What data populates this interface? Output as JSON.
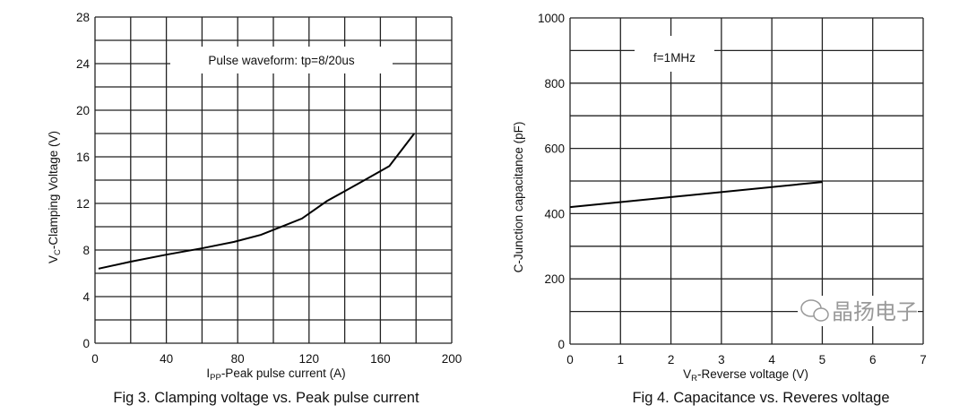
{
  "chart_data": [
    {
      "type": "line",
      "title": "Fig 3. Clamping voltage vs. Peak pulse current",
      "xlabel_main": "I",
      "xlabel_sub": "PP",
      "xlabel_rest": "-Peak pulse current (A)",
      "ylabel_main": "V",
      "ylabel_sub": "C",
      "ylabel_rest": "-Clamping Voltage (V)",
      "annotation": "Pulse waveform: tp=8/20us",
      "xlim": [
        0,
        200
      ],
      "ylim": [
        0,
        28
      ],
      "xticks": [
        0,
        40,
        80,
        120,
        160,
        200
      ],
      "yticks": [
        0,
        4,
        8,
        12,
        16,
        20,
        24,
        28
      ],
      "xgrid_step": 20,
      "ygrid_step": 2,
      "grid": true,
      "series": [
        {
          "name": "Vc",
          "x": [
            2,
            20,
            40,
            60,
            78,
            93,
            116,
            130,
            150,
            165,
            179
          ],
          "y": [
            6.4,
            7.0,
            7.6,
            8.15,
            8.7,
            9.3,
            10.7,
            12.2,
            13.9,
            15.2,
            18.0
          ]
        }
      ]
    },
    {
      "type": "line",
      "title": "Fig 4. Capacitance vs. Reveres voltage",
      "xlabel_main": "V",
      "xlabel_sub": "R",
      "xlabel_rest": "-Reverse voltage (V)",
      "ylabel_main": "C-Junction capacitance (pF)",
      "ylabel_sub": "",
      "ylabel_rest": "",
      "annotation": "f=1MHz",
      "xlim": [
        0,
        7
      ],
      "ylim": [
        0,
        1000
      ],
      "xticks": [
        0,
        1,
        2,
        3,
        4,
        5,
        6,
        7
      ],
      "yticks": [
        0,
        200,
        400,
        600,
        800,
        1000
      ],
      "xgrid_step": 1,
      "ygrid_step": 100,
      "grid": true,
      "series": [
        {
          "name": "Cj",
          "x": [
            0,
            5
          ],
          "y": [
            420,
            497
          ]
        }
      ]
    }
  ],
  "watermark": {
    "text": "晶扬电子",
    "icon": "wechat-icon"
  }
}
